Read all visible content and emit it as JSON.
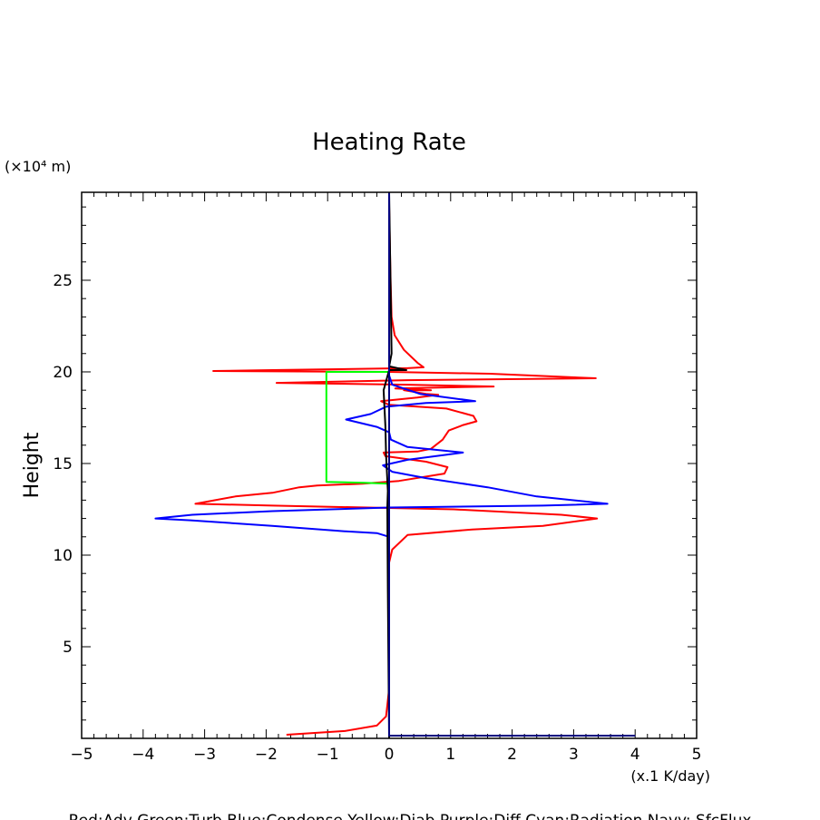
{
  "chart_data": {
    "type": "line",
    "title": "Heating Rate",
    "ylabel": "Height",
    "yunit": "(×10⁴ m)",
    "xunit": "(x.1 K/day)",
    "xlim": [
      -5,
      5
    ],
    "ylim": [
      0,
      29.8
    ],
    "xticks": [
      -5,
      -4,
      -3,
      -2,
      -1,
      0,
      1,
      2,
      3,
      4,
      5
    ],
    "yticks": [
      5,
      10,
      15,
      20,
      25
    ],
    "grid": false,
    "legend_text": "Red:Adv  Green:Turb  Blue:Condense  Yellow:Diab  Purple:Diff  Cyan:Radiation  Navy: SfcFlux",
    "series": [
      {
        "name": "Adv",
        "color": "#ff0000",
        "points": [
          [
            -1.67,
            0.2
          ],
          [
            -0.72,
            0.4
          ],
          [
            -0.2,
            0.7
          ],
          [
            -0.05,
            1.2
          ],
          [
            0,
            2.7
          ],
          [
            0,
            9.6
          ],
          [
            0.05,
            10.3
          ],
          [
            0.3,
            11.1
          ],
          [
            1.35,
            11.4
          ],
          [
            2.5,
            11.6
          ],
          [
            3.38,
            12.0
          ],
          [
            2.8,
            12.2
          ],
          [
            1.05,
            12.5
          ],
          [
            -1.9,
            12.7
          ],
          [
            -3.15,
            12.8
          ],
          [
            -2.5,
            13.2
          ],
          [
            -1.9,
            13.4
          ],
          [
            -1.46,
            13.7
          ],
          [
            -1.17,
            13.8
          ],
          [
            -0.43,
            13.9
          ],
          [
            0.16,
            14.05
          ],
          [
            0.9,
            14.45
          ],
          [
            0.95,
            14.8
          ],
          [
            0.6,
            15.1
          ],
          [
            -0.06,
            15.4
          ],
          [
            -0.09,
            15.6
          ],
          [
            0.46,
            15.65
          ],
          [
            0.68,
            15.8
          ],
          [
            0.87,
            16.3
          ],
          [
            0.97,
            16.8
          ],
          [
            1.2,
            17.1
          ],
          [
            1.42,
            17.3
          ],
          [
            1.37,
            17.6
          ],
          [
            0.93,
            18.0
          ],
          [
            0,
            18.2
          ],
          [
            -0.13,
            18.4
          ],
          [
            0.46,
            18.6
          ],
          [
            0.8,
            18.75
          ],
          [
            0.6,
            18.8
          ],
          [
            0.24,
            19.0
          ],
          [
            0.68,
            19.0
          ],
          [
            0.1,
            19.1
          ],
          [
            1.7,
            19.2
          ],
          [
            0.3,
            19.3
          ],
          [
            -1.83,
            19.4
          ],
          [
            0.3,
            19.55
          ],
          [
            3.36,
            19.65
          ],
          [
            1.64,
            19.9
          ],
          [
            0,
            20.0
          ],
          [
            -2.86,
            20.05
          ],
          [
            -1.9,
            20.1
          ],
          [
            0.3,
            20.2
          ],
          [
            0.56,
            20.25
          ],
          [
            0.46,
            20.5
          ],
          [
            0.24,
            21.2
          ],
          [
            0.09,
            22.0
          ],
          [
            0.04,
            23.0
          ],
          [
            0.02,
            25.4
          ],
          [
            0,
            29.0
          ]
        ]
      },
      {
        "name": "Turb",
        "color": "#00ff00",
        "points": [
          [
            0,
            20.0
          ],
          [
            -1.02,
            20.0
          ],
          [
            -1.02,
            14.0
          ],
          [
            -0.4,
            13.95
          ],
          [
            0,
            13.9
          ]
        ]
      },
      {
        "name": "Condense",
        "color": "#0000ff",
        "points": [
          [
            0,
            0
          ],
          [
            0,
            11.0
          ],
          [
            -0.2,
            11.2
          ],
          [
            -0.72,
            11.3
          ],
          [
            -1.9,
            11.6
          ],
          [
            -3.23,
            11.9
          ],
          [
            -3.8,
            12.0
          ],
          [
            -3.2,
            12.2
          ],
          [
            -1.9,
            12.4
          ],
          [
            0,
            12.6
          ],
          [
            2.5,
            12.7
          ],
          [
            3.55,
            12.8
          ],
          [
            2.4,
            13.2
          ],
          [
            1.6,
            13.7
          ],
          [
            0.6,
            14.2
          ],
          [
            0.05,
            14.55
          ],
          [
            -0.1,
            14.9
          ],
          [
            0.3,
            15.2
          ],
          [
            1.2,
            15.6
          ],
          [
            0.3,
            15.9
          ],
          [
            0.03,
            16.3
          ],
          [
            0,
            16.7
          ],
          [
            -0.2,
            17.0
          ],
          [
            -0.7,
            17.4
          ],
          [
            -0.3,
            17.7
          ],
          [
            -0.05,
            18.1
          ],
          [
            0.6,
            18.3
          ],
          [
            1.4,
            18.4
          ],
          [
            0.5,
            18.8
          ],
          [
            0.05,
            19.3
          ],
          [
            0,
            19.8
          ],
          [
            0,
            29.8
          ]
        ]
      },
      {
        "name": "Diab",
        "color": "#000000",
        "points": [
          [
            0,
            0
          ],
          [
            -0.02,
            8
          ],
          [
            -0.03,
            12.6
          ],
          [
            -0.02,
            13.5
          ],
          [
            -0.05,
            15.5
          ],
          [
            -0.06,
            17.0
          ],
          [
            -0.09,
            19.0
          ],
          [
            0,
            20.1
          ],
          [
            0.28,
            20.1
          ],
          [
            0,
            20.3
          ],
          [
            0.04,
            21.0
          ],
          [
            0,
            29.8
          ]
        ]
      },
      {
        "name": "SfcFlux",
        "color": "#000080",
        "points": [
          [
            4.0,
            0.15
          ],
          [
            0,
            0.15
          ],
          [
            0,
            29.8
          ]
        ]
      }
    ]
  }
}
